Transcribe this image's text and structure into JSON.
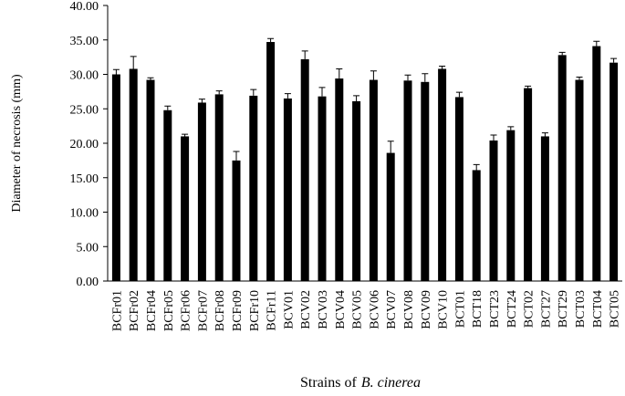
{
  "chart_data": {
    "type": "bar",
    "ylabel": "Diameter of necrosis (mm)",
    "xlabel_parts": [
      "Strains of",
      "B. cinerea"
    ],
    "categories": [
      "BCFr01",
      "BCFr02",
      "BCFr04",
      "BCFr05",
      "BCFr06",
      "BCFr07",
      "BCFr08",
      "BCFr09",
      "BCFr10",
      "BCFr11",
      "BCV01",
      "BCV02",
      "BCV03",
      "BCV04",
      "BCV05",
      "BCV06",
      "BCV07",
      "BCV08",
      "BCV09",
      "BCV10",
      "BCT01",
      "BCT18",
      "BCT23",
      "BCT24",
      "BCT02",
      "BCT27",
      "BCT29",
      "BCT03",
      "BCT04",
      "BCT05"
    ],
    "values": [
      30.0,
      30.8,
      29.2,
      24.8,
      21.0,
      25.9,
      27.1,
      17.5,
      26.9,
      34.7,
      26.5,
      32.2,
      26.8,
      29.4,
      26.1,
      29.2,
      18.6,
      29.1,
      28.9,
      30.8,
      26.7,
      16.1,
      20.4,
      21.9,
      28.0,
      21.0,
      32.8,
      29.2,
      34.1,
      31.7
    ],
    "errors": [
      0.7,
      1.8,
      0.3,
      0.6,
      0.3,
      0.5,
      0.5,
      1.3,
      0.9,
      0.5,
      0.7,
      1.2,
      1.3,
      1.4,
      0.8,
      1.3,
      1.7,
      0.8,
      1.2,
      0.4,
      0.7,
      0.8,
      0.8,
      0.5,
      0.3,
      0.5,
      0.4,
      0.4,
      0.7,
      0.6
    ],
    "color": "#000000",
    "ylim": [
      0,
      40
    ],
    "yticks": [
      {
        "value": 0,
        "label": "0.00"
      },
      {
        "value": 5,
        "label": "5.00"
      },
      {
        "value": 10,
        "label": "10.00"
      },
      {
        "value": 15,
        "label": "15.00"
      },
      {
        "value": 20,
        "label": "20.00"
      },
      {
        "value": 25,
        "label": "25.00"
      },
      {
        "value": 30,
        "label": "30.00"
      },
      {
        "value": 35,
        "label": "35.00"
      },
      {
        "value": 40,
        "label": "40.00"
      }
    ],
    "grid": false
  }
}
